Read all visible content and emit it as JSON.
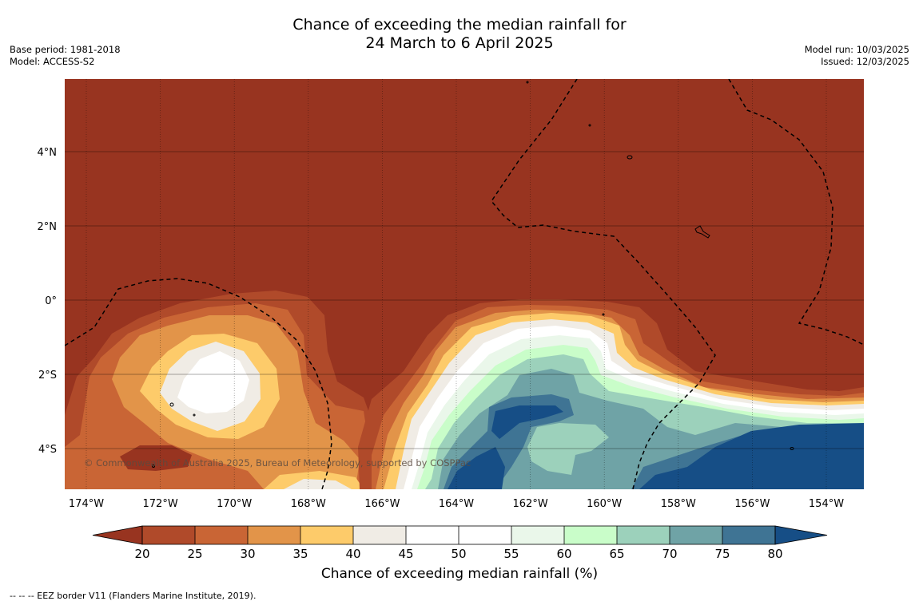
{
  "title": {
    "line1": "Chance of exceeding the median rainfall for",
    "line2": "24 March to 6 April 2025"
  },
  "info_left": {
    "base_period": "Base period: 1981-2018",
    "model": "Model: ACCESS-S2"
  },
  "info_right": {
    "model_run": "Model run: 10/03/2025",
    "issued": "Issued: 12/03/2025"
  },
  "map": {
    "lon_labels": [
      "174°W",
      "172°W",
      "170°W",
      "168°W",
      "166°W",
      "164°W",
      "162°W",
      "160°W",
      "158°W",
      "156°W",
      "154°W"
    ],
    "lat_labels": [
      "4°N",
      "2°N",
      "0°",
      "2°S",
      "4°S"
    ],
    "copyright": "© Commonwealth of Australia 2025, Bureau of Meteorology, supported by COSPPac",
    "background_color": "#983420"
  },
  "colorbar": {
    "ticks": [
      "20",
      "25",
      "30",
      "35",
      "40",
      "45",
      "50",
      "55",
      "60",
      "65",
      "70",
      "75",
      "80"
    ],
    "colors": [
      "#983420",
      "#B04A2A",
      "#C96535",
      "#E29449",
      "#FDCB6A",
      "#F0ECE5",
      "#FFFFFF",
      "#FFFFFF",
      "#EAF7EA",
      "#C9FDC9",
      "#9CD1BB",
      "#6FA3A6",
      "#3F7494",
      "#164E86"
    ],
    "label": "Chance of exceeding median rainfall (%)"
  },
  "footnote": "-- -- -- EEZ border V11 (Flanders Marine Institute, 2019)."
}
